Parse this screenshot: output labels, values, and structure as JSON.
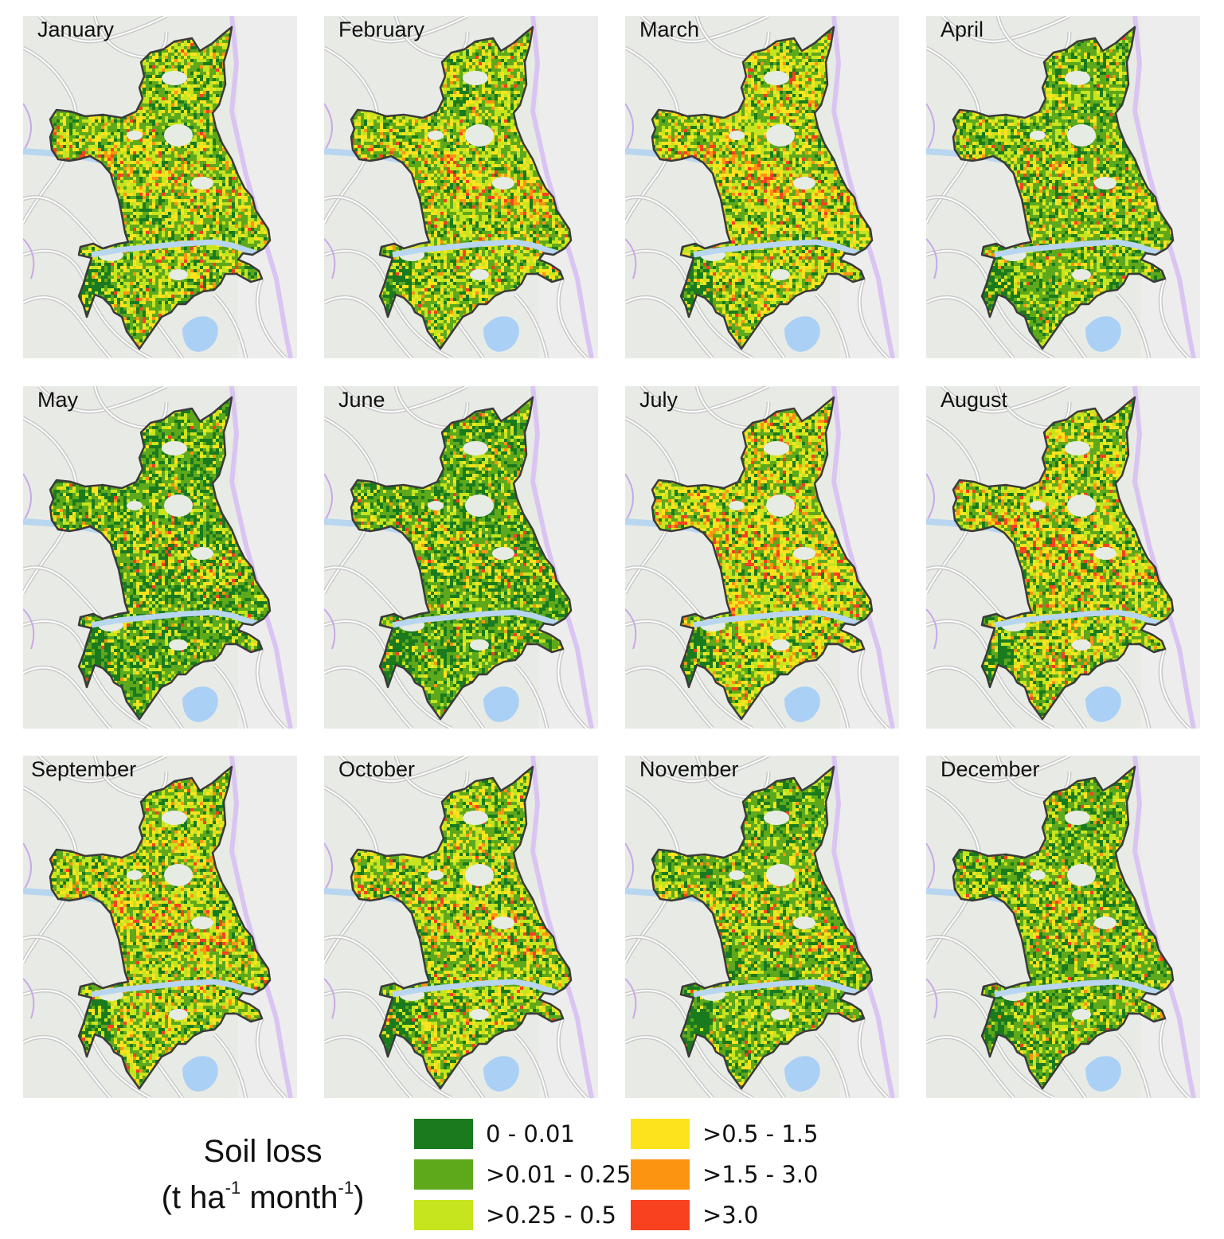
{
  "panels": [
    {
      "label": "January",
      "mix": [
        0.16,
        0.36,
        0.25,
        0.17,
        0.04,
        0.02
      ]
    },
    {
      "label": "February",
      "mix": [
        0.14,
        0.34,
        0.25,
        0.2,
        0.05,
        0.02
      ]
    },
    {
      "label": "March",
      "mix": [
        0.12,
        0.3,
        0.25,
        0.23,
        0.07,
        0.03
      ]
    },
    {
      "label": "April",
      "mix": [
        0.2,
        0.42,
        0.22,
        0.12,
        0.03,
        0.01
      ]
    },
    {
      "label": "May",
      "mix": [
        0.32,
        0.4,
        0.16,
        0.09,
        0.02,
        0.01
      ]
    },
    {
      "label": "June",
      "mix": [
        0.3,
        0.42,
        0.17,
        0.08,
        0.02,
        0.01
      ]
    },
    {
      "label": "July",
      "mix": [
        0.12,
        0.28,
        0.24,
        0.24,
        0.08,
        0.04
      ]
    },
    {
      "label": "August",
      "mix": [
        0.14,
        0.3,
        0.24,
        0.22,
        0.07,
        0.03
      ]
    },
    {
      "label": "September",
      "mix": [
        0.14,
        0.32,
        0.26,
        0.2,
        0.06,
        0.02
      ]
    },
    {
      "label": "October",
      "mix": [
        0.16,
        0.34,
        0.25,
        0.18,
        0.05,
        0.02
      ]
    },
    {
      "label": "November",
      "mix": [
        0.22,
        0.42,
        0.21,
        0.11,
        0.03,
        0.01
      ]
    },
    {
      "label": "December",
      "mix": [
        0.24,
        0.42,
        0.2,
        0.1,
        0.03,
        0.01
      ]
    }
  ],
  "legend": {
    "title_line1": "Soil loss",
    "title_t": "(t ha",
    "title_exp1": "-1",
    "title_month": " month",
    "title_exp2": "-1",
    "title_close": ")",
    "classes": [
      {
        "label": "0 - 0.01",
        "color": "#1a7a1e"
      },
      {
        "label": ">0.01 - 0.25",
        "color": "#5ea81c"
      },
      {
        "label": ">0.25 - 0.5",
        "color": "#c6e51e"
      },
      {
        "label": ">0.5 - 1.5",
        "color": "#fde21e"
      },
      {
        "label": ">1.5 - 3.0",
        "color": "#fc9412"
      },
      {
        "label": ">3.0",
        "color": "#f8411e"
      }
    ]
  }
}
